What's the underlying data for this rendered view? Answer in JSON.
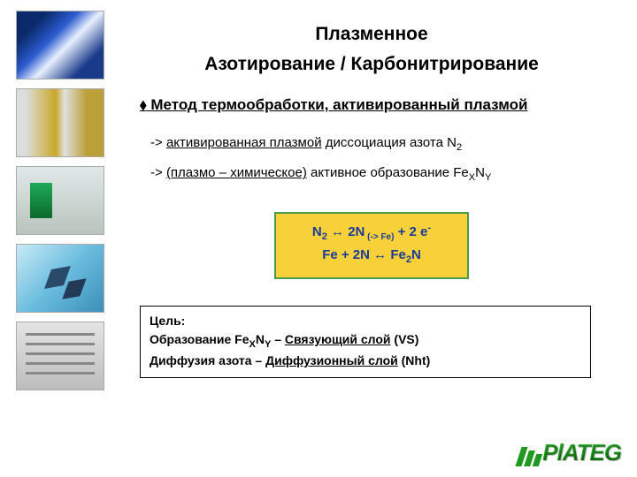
{
  "title_line1": "Плазменное",
  "title_line2": "Азотирование / Карбонитрирование",
  "subheading": " Метод термообработки, активированный плазмой",
  "bullet1_arrow": "->",
  "bullet1_u": "активированная плазмой",
  "bullet1_rest": " диссоциация азота N",
  "bullet1_sub": "2",
  "bullet2_arrow": "->",
  "bullet2_u": "(плазмо – химическое)",
  "bullet2_rest": " активное образование Fe",
  "bullet2_subX": "X",
  "bullet2_N": "N",
  "bullet2_subY": "Y",
  "formula": {
    "line1_a": "N",
    "line1_sub1": "2",
    "line1_b": " ↔ 2N",
    "line1_tiny": " (-> Fe)",
    "line1_c": " + 2 e",
    "line1_sup": "-",
    "line2_a": "Fe   +   2N   ↔   Fe",
    "line2_sub": "2",
    "line2_b": "N",
    "border_color": "#4a9b4a",
    "bg_color": "#f7d03a",
    "text_color": "#1a3a9a"
  },
  "goal": {
    "label": "Цель:",
    "line1_a": "Образование Fe",
    "line1_subX": "X",
    "line1_N": "N",
    "line1_subY": "Y",
    "line1_b": " – ",
    "line1_u": "Связующий слой",
    "line1_c": " (VS)",
    "line2_a": "Диффузия азота – ",
    "line2_u": " Диффузионный слой",
    "line2_b": " (Nht)"
  },
  "logo_text": "PlATEG",
  "thumbs": {
    "t1": "plasma-gears",
    "t2": "cutting-tools",
    "t3": "equipment-cabinet",
    "t4": "electronic-chips",
    "t5": "furnace-racks"
  }
}
